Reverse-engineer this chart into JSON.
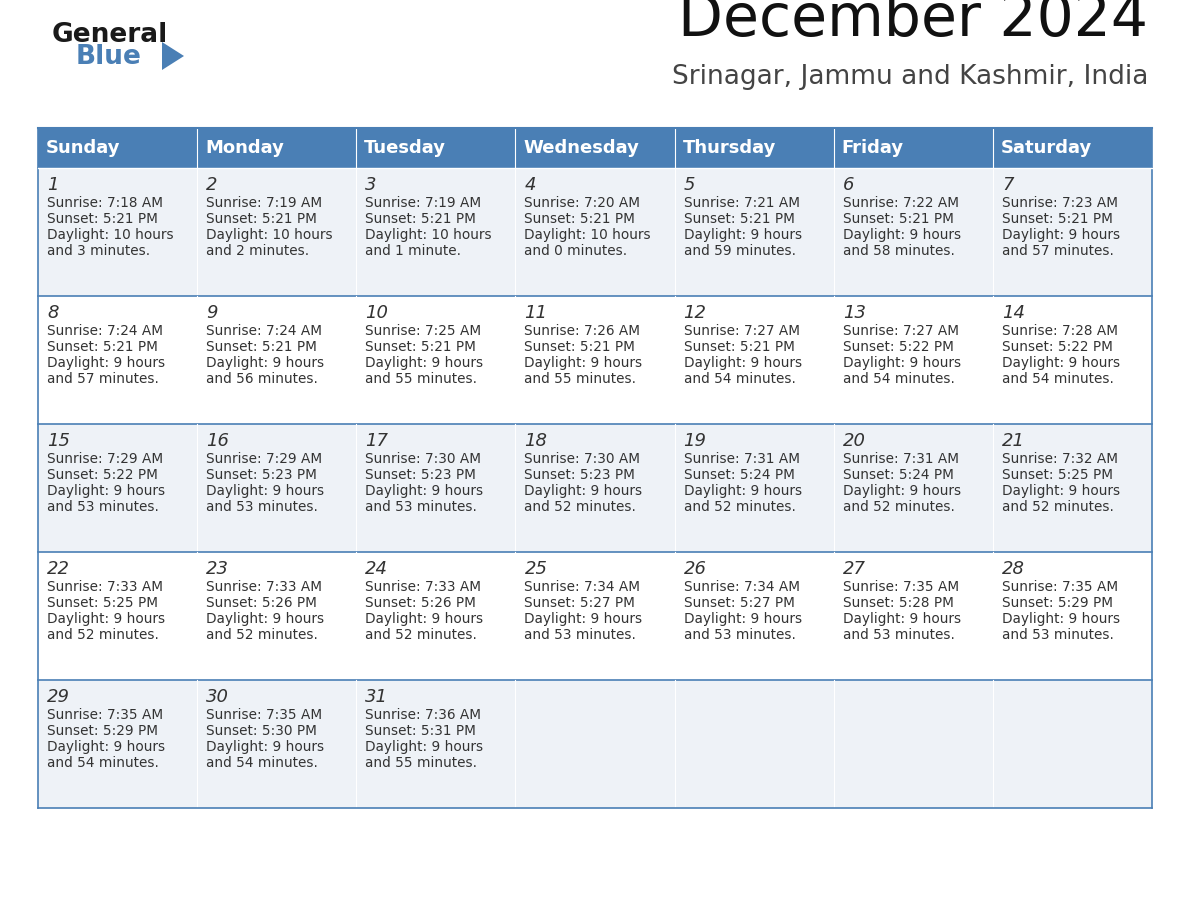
{
  "title": "December 2024",
  "subtitle": "Srinagar, Jammu and Kashmir, India",
  "days_of_week": [
    "Sunday",
    "Monday",
    "Tuesday",
    "Wednesday",
    "Thursday",
    "Friday",
    "Saturday"
  ],
  "header_bg": "#4a7fb5",
  "header_text": "#ffffff",
  "row_bg_light": "#eef2f7",
  "row_bg_white": "#ffffff",
  "cell_text_color": "#333333",
  "border_color": "#4a7fb5",
  "calendar_data": [
    [
      {
        "day": 1,
        "sunrise": "7:18 AM",
        "sunset": "5:21 PM",
        "daylight_line1": "10 hours",
        "daylight_line2": "and 3 minutes."
      },
      {
        "day": 2,
        "sunrise": "7:19 AM",
        "sunset": "5:21 PM",
        "daylight_line1": "10 hours",
        "daylight_line2": "and 2 minutes."
      },
      {
        "day": 3,
        "sunrise": "7:19 AM",
        "sunset": "5:21 PM",
        "daylight_line1": "10 hours",
        "daylight_line2": "and 1 minute."
      },
      {
        "day": 4,
        "sunrise": "7:20 AM",
        "sunset": "5:21 PM",
        "daylight_line1": "10 hours",
        "daylight_line2": "and 0 minutes."
      },
      {
        "day": 5,
        "sunrise": "7:21 AM",
        "sunset": "5:21 PM",
        "daylight_line1": "9 hours",
        "daylight_line2": "and 59 minutes."
      },
      {
        "day": 6,
        "sunrise": "7:22 AM",
        "sunset": "5:21 PM",
        "daylight_line1": "9 hours",
        "daylight_line2": "and 58 minutes."
      },
      {
        "day": 7,
        "sunrise": "7:23 AM",
        "sunset": "5:21 PM",
        "daylight_line1": "9 hours",
        "daylight_line2": "and 57 minutes."
      }
    ],
    [
      {
        "day": 8,
        "sunrise": "7:24 AM",
        "sunset": "5:21 PM",
        "daylight_line1": "9 hours",
        "daylight_line2": "and 57 minutes."
      },
      {
        "day": 9,
        "sunrise": "7:24 AM",
        "sunset": "5:21 PM",
        "daylight_line1": "9 hours",
        "daylight_line2": "and 56 minutes."
      },
      {
        "day": 10,
        "sunrise": "7:25 AM",
        "sunset": "5:21 PM",
        "daylight_line1": "9 hours",
        "daylight_line2": "and 55 minutes."
      },
      {
        "day": 11,
        "sunrise": "7:26 AM",
        "sunset": "5:21 PM",
        "daylight_line1": "9 hours",
        "daylight_line2": "and 55 minutes."
      },
      {
        "day": 12,
        "sunrise": "7:27 AM",
        "sunset": "5:21 PM",
        "daylight_line1": "9 hours",
        "daylight_line2": "and 54 minutes."
      },
      {
        "day": 13,
        "sunrise": "7:27 AM",
        "sunset": "5:22 PM",
        "daylight_line1": "9 hours",
        "daylight_line2": "and 54 minutes."
      },
      {
        "day": 14,
        "sunrise": "7:28 AM",
        "sunset": "5:22 PM",
        "daylight_line1": "9 hours",
        "daylight_line2": "and 54 minutes."
      }
    ],
    [
      {
        "day": 15,
        "sunrise": "7:29 AM",
        "sunset": "5:22 PM",
        "daylight_line1": "9 hours",
        "daylight_line2": "and 53 minutes."
      },
      {
        "day": 16,
        "sunrise": "7:29 AM",
        "sunset": "5:23 PM",
        "daylight_line1": "9 hours",
        "daylight_line2": "and 53 minutes."
      },
      {
        "day": 17,
        "sunrise": "7:30 AM",
        "sunset": "5:23 PM",
        "daylight_line1": "9 hours",
        "daylight_line2": "and 53 minutes."
      },
      {
        "day": 18,
        "sunrise": "7:30 AM",
        "sunset": "5:23 PM",
        "daylight_line1": "9 hours",
        "daylight_line2": "and 52 minutes."
      },
      {
        "day": 19,
        "sunrise": "7:31 AM",
        "sunset": "5:24 PM",
        "daylight_line1": "9 hours",
        "daylight_line2": "and 52 minutes."
      },
      {
        "day": 20,
        "sunrise": "7:31 AM",
        "sunset": "5:24 PM",
        "daylight_line1": "9 hours",
        "daylight_line2": "and 52 minutes."
      },
      {
        "day": 21,
        "sunrise": "7:32 AM",
        "sunset": "5:25 PM",
        "daylight_line1": "9 hours",
        "daylight_line2": "and 52 minutes."
      }
    ],
    [
      {
        "day": 22,
        "sunrise": "7:33 AM",
        "sunset": "5:25 PM",
        "daylight_line1": "9 hours",
        "daylight_line2": "and 52 minutes."
      },
      {
        "day": 23,
        "sunrise": "7:33 AM",
        "sunset": "5:26 PM",
        "daylight_line1": "9 hours",
        "daylight_line2": "and 52 minutes."
      },
      {
        "day": 24,
        "sunrise": "7:33 AM",
        "sunset": "5:26 PM",
        "daylight_line1": "9 hours",
        "daylight_line2": "and 52 minutes."
      },
      {
        "day": 25,
        "sunrise": "7:34 AM",
        "sunset": "5:27 PM",
        "daylight_line1": "9 hours",
        "daylight_line2": "and 53 minutes."
      },
      {
        "day": 26,
        "sunrise": "7:34 AM",
        "sunset": "5:27 PM",
        "daylight_line1": "9 hours",
        "daylight_line2": "and 53 minutes."
      },
      {
        "day": 27,
        "sunrise": "7:35 AM",
        "sunset": "5:28 PM",
        "daylight_line1": "9 hours",
        "daylight_line2": "and 53 minutes."
      },
      {
        "day": 28,
        "sunrise": "7:35 AM",
        "sunset": "5:29 PM",
        "daylight_line1": "9 hours",
        "daylight_line2": "and 53 minutes."
      }
    ],
    [
      {
        "day": 29,
        "sunrise": "7:35 AM",
        "sunset": "5:29 PM",
        "daylight_line1": "9 hours",
        "daylight_line2": "and 54 minutes."
      },
      {
        "day": 30,
        "sunrise": "7:35 AM",
        "sunset": "5:30 PM",
        "daylight_line1": "9 hours",
        "daylight_line2": "and 54 minutes."
      },
      {
        "day": 31,
        "sunrise": "7:36 AM",
        "sunset": "5:31 PM",
        "daylight_line1": "9 hours",
        "daylight_line2": "and 55 minutes."
      },
      null,
      null,
      null,
      null
    ]
  ]
}
